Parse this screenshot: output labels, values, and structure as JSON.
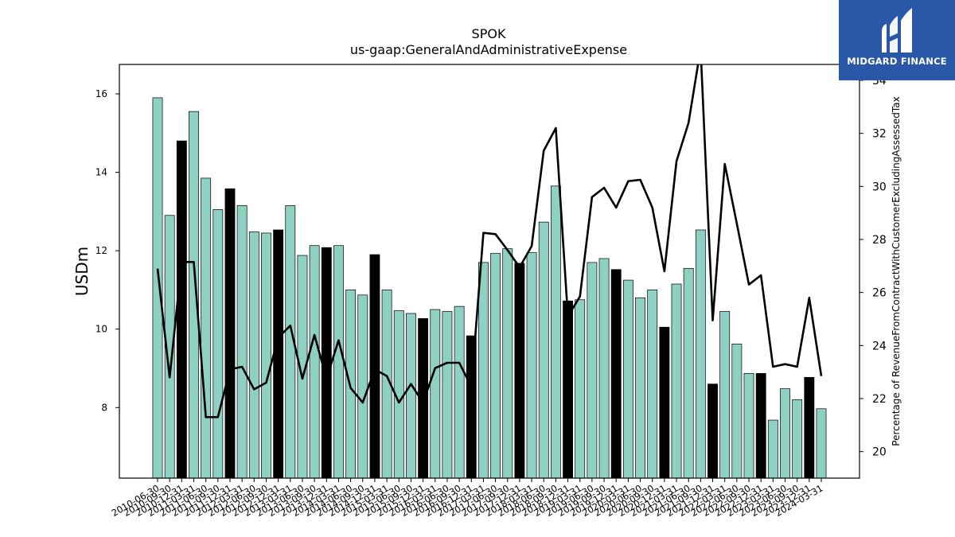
{
  "brand": {
    "name": "MIDGARD FINANCE",
    "bg_color": "#2a58a8",
    "icon": "midgard-logo-icon"
  },
  "chart_data": {
    "type": "bar",
    "title": "SPOK",
    "subtitle": "us-gaap:GeneralAndAdministrativeExpense",
    "ylabel": "USDm",
    "y2label": "Percentage of RevenueFromContractWithCustomerExcludingAssessedTax",
    "ylim": [
      6.2,
      16.75
    ],
    "y2lim": [
      19.0,
      34.6
    ],
    "yticks": [
      8,
      10,
      12,
      14,
      16
    ],
    "y2ticks": [
      20,
      22,
      24,
      26,
      28,
      30,
      32,
      34
    ],
    "bar_color": "#8ed1c3",
    "highlight_color": "#000000",
    "line_color": "#000000",
    "categories": [
      "2010-06-30",
      "2010-09-30",
      "2010-12-31",
      "2011-03-31",
      "2011-06-30",
      "2011-09-30",
      "2011-12-31",
      "2012-03-31",
      "2012-06-30",
      "2012-09-30",
      "2012-12-31",
      "2013-03-31",
      "2013-06-30",
      "2013-09-30",
      "2013-12-31",
      "2014-03-31",
      "2014-06-30",
      "2014-09-30",
      "2014-12-31",
      "2015-03-31",
      "2015-06-30",
      "2015-09-30",
      "2015-12-31",
      "2016-03-31",
      "2016-06-30",
      "2016-09-30",
      "2016-12-31",
      "2017-03-31",
      "2017-06-30",
      "2017-09-30",
      "2017-12-31",
      "2018-03-31",
      "2018-06-30",
      "2018-09-30",
      "2018-12-31",
      "2019-03-31",
      "2019-06-30",
      "2019-09-30",
      "2019-12-31",
      "2020-03-31",
      "2020-06-30",
      "2020-09-30",
      "2020-12-31",
      "2021-03-31",
      "2021-06-30",
      "2021-09-30",
      "2021-12-31",
      "2022-03-31",
      "2022-06-30",
      "2022-09-30",
      "2022-12-31",
      "2023-03-31",
      "2023-06-30",
      "2023-09-30",
      "2023-12-31",
      "2024-03-31"
    ],
    "xtick_labels": [
      "2010-06-30",
      "2010-09-30",
      "2010-12-31",
      "2011-03-31",
      "2011-06-30",
      "2011-09-30",
      "2011-12-31",
      "2012-03-31",
      "2012-06-30",
      "2012-09-30",
      "2012-12-31",
      "2013-03-31",
      "2013-06-30",
      "2013-09-30",
      "2013-12-31",
      "2014-03-31",
      "2014-06-30",
      "2014-09-30",
      "2014-12-31",
      "2015-03-31",
      "2015-06-30",
      "2015-09-30",
      "2015-12-31",
      "2016-03-31",
      "2016-06-30",
      "2016-09-30",
      "2016-12-31",
      "2017-03-31",
      "2017-06-30",
      "2017-09-30",
      "2017-12-31",
      "2018-03-31",
      "2018-06-30",
      "2018-09-30",
      "2018-12-31",
      "2019-03-31",
      "2019-06-30",
      "2019-09-30",
      "2019-12-31",
      "2020-03-31",
      "2020-06-30",
      "2020-09-30",
      "2020-12-31",
      "2021-03-31",
      "2021-06-30",
      "2021-09-30",
      "2021-12-31",
      "2022-03-31",
      "2022-06-30",
      "2022-09-30",
      "2022-12-31",
      "2023-03-31",
      "2023-06-30",
      "2023-09-30",
      "2023-12-31",
      "2024-03-31"
    ],
    "series": [
      {
        "axis": "left",
        "values": [
          15.9,
          12.9,
          14.8,
          15.55,
          13.85,
          13.05,
          13.58,
          13.15,
          12.48,
          12.45,
          12.53,
          13.15,
          11.88,
          12.13,
          12.08,
          12.13,
          11.0,
          10.87,
          11.9,
          11.0,
          10.47,
          10.4,
          10.27,
          10.5,
          10.45,
          10.58,
          9.83,
          11.7,
          11.93,
          12.05,
          11.68,
          11.95,
          12.73,
          13.65,
          10.72,
          10.75,
          11.7,
          11.8,
          11.52,
          11.25,
          10.8,
          11.0,
          10.05,
          11.15,
          11.55,
          12.53,
          8.6,
          10.45,
          9.62,
          8.87,
          8.87,
          7.68,
          8.48,
          8.2,
          8.77,
          7.97
        ],
        "highlight": [
          false,
          false,
          true,
          false,
          false,
          false,
          true,
          false,
          false,
          false,
          true,
          false,
          false,
          false,
          true,
          false,
          false,
          false,
          true,
          false,
          false,
          false,
          true,
          false,
          false,
          false,
          true,
          false,
          false,
          false,
          true,
          false,
          false,
          false,
          true,
          false,
          false,
          false,
          true,
          false,
          false,
          false,
          true,
          false,
          false,
          false,
          true,
          false,
          false,
          false,
          true,
          false,
          false,
          false,
          true,
          false
        ]
      },
      {
        "type": "line",
        "axis": "right",
        "values": [
          26.9,
          22.8,
          27.15,
          27.15,
          21.3,
          21.3,
          23.1,
          23.2,
          22.35,
          22.6,
          24.3,
          24.75,
          22.75,
          24.4,
          22.75,
          24.2,
          22.4,
          21.85,
          23.1,
          22.85,
          21.85,
          22.55,
          21.85,
          23.15,
          23.35,
          23.35,
          22.45,
          28.25,
          28.2,
          27.6,
          26.95,
          27.75,
          31.35,
          32.2,
          25.1,
          25.85,
          29.6,
          29.95,
          29.2,
          30.2,
          30.25,
          29.2,
          26.8,
          30.95,
          32.4,
          35.2,
          24.95,
          30.85,
          28.6,
          26.3,
          26.65,
          23.2,
          23.3,
          23.2,
          25.8,
          22.85
        ]
      }
    ]
  }
}
